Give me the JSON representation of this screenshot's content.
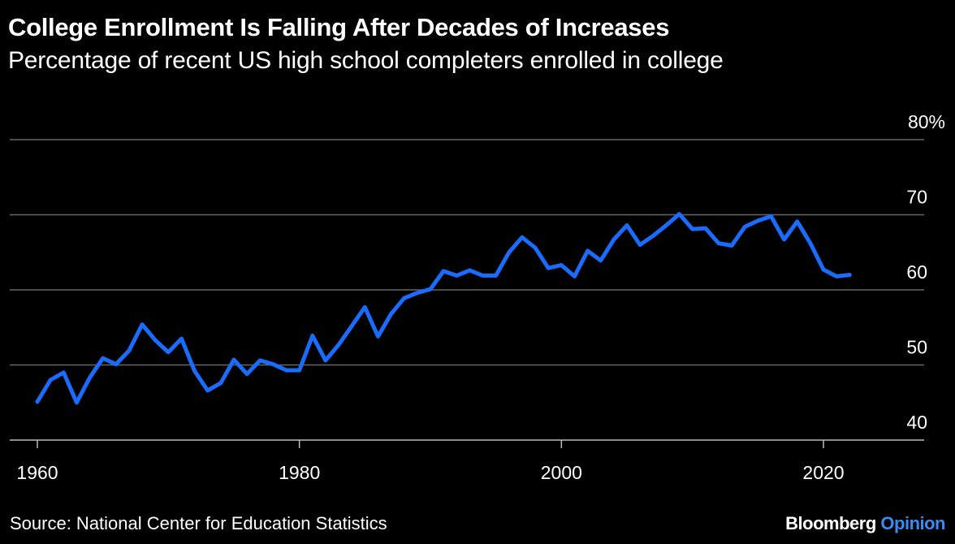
{
  "header": {
    "title": "College Enrollment Is Falling After Decades of Increases",
    "subtitle": "Percentage of recent US high school completers enrolled in college"
  },
  "footer": {
    "source": "Source: National Center for Education Statistics",
    "brand_primary": "Bloomberg",
    "brand_secondary": "Opinion"
  },
  "colors": {
    "background": "#000000",
    "line": "#1a6cff",
    "grid": "#666666",
    "text": "#ffffff",
    "brand_accent": "#3a8bf0"
  },
  "chart_data": {
    "type": "line",
    "title": "College Enrollment Is Falling After Decades of Increases",
    "subtitle": "Percentage of recent US high school completers enrolled in college",
    "xlabel": "",
    "ylabel": "",
    "xlim": [
      1960,
      2028
    ],
    "ylim": [
      40,
      80
    ],
    "x_ticks": [
      1960,
      1980,
      2000,
      2020
    ],
    "y_ticks": [
      40,
      50,
      60,
      70,
      80
    ],
    "y_tick_labels": [
      "40",
      "50",
      "60",
      "70",
      "80%"
    ],
    "grid": true,
    "y_axis_side": "right",
    "series": [
      {
        "x": [
          1960,
          1961,
          1962,
          1963,
          1964,
          1965,
          1966,
          1967,
          1968,
          1969,
          1970,
          1971,
          1972,
          1973,
          1974,
          1975,
          1976,
          1977,
          1978,
          1979,
          1980,
          1981,
          1982,
          1983,
          1984,
          1985,
          1986,
          1987,
          1988,
          1989,
          1990,
          1991,
          1992,
          1993,
          1994,
          1995,
          1996,
          1997,
          1998,
          1999,
          2000,
          2001,
          2002,
          2003,
          2004,
          2005,
          2006,
          2007,
          2008,
          2009,
          2010,
          2011,
          2012,
          2013,
          2014,
          2015,
          2016,
          2017,
          2018,
          2019,
          2020,
          2021,
          2022
        ],
        "values": [
          45.1,
          48.0,
          49.0,
          45.0,
          48.3,
          50.9,
          50.1,
          51.9,
          55.4,
          53.3,
          51.7,
          53.5,
          49.2,
          46.6,
          47.6,
          50.7,
          48.8,
          50.6,
          50.1,
          49.3,
          49.3,
          53.9,
          50.6,
          52.7,
          55.2,
          57.7,
          53.8,
          56.8,
          58.9,
          59.6,
          60.1,
          62.5,
          61.9,
          62.6,
          61.9,
          61.9,
          65.0,
          67.0,
          65.6,
          62.9,
          63.3,
          61.8,
          65.2,
          63.9,
          66.7,
          68.6,
          66.0,
          67.2,
          68.6,
          70.1,
          68.1,
          68.2,
          66.2,
          65.9,
          68.4,
          69.2,
          69.8,
          66.7,
          69.1,
          66.2,
          62.7,
          61.8,
          62.0
        ]
      }
    ]
  }
}
